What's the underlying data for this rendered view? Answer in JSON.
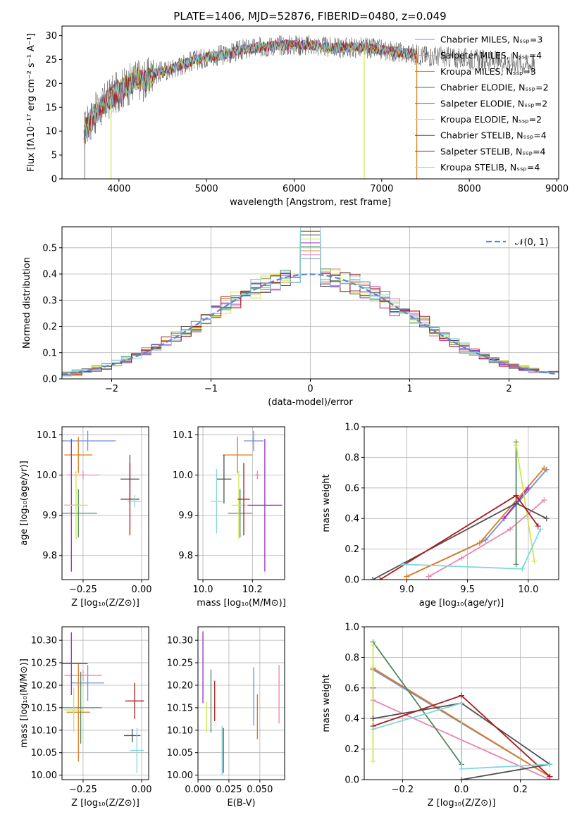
{
  "figure": {
    "title": "PLATE=1406, MJD=52876, FIBERID=0480, z=0.049"
  },
  "colors": [
    "#6f8fd8",
    "#ee82b4",
    "#e07a1f",
    "#4f8a5e",
    "#9a2cc4",
    "#cde849",
    "#4f4f4f",
    "#aa1a1a",
    "#7fd8df"
  ],
  "chart_data": [
    {
      "id": "spectrum",
      "type": "line",
      "title": "PLATE=1406, MJD=52876, FIBERID=0480, z=0.049",
      "xlabel": "wavelength [Angstrom, rest frame]",
      "ylabel": "Flux [fλ10⁻¹⁷ erg cm⁻² s⁻¹ A⁻¹]",
      "xlim": [
        3350,
        9020
      ],
      "ylim": [
        0,
        32
      ],
      "xticks": [
        4000,
        5000,
        6000,
        7000,
        8000,
        9000
      ],
      "yticks": [
        0,
        5,
        10,
        15,
        20,
        25,
        30
      ],
      "grid": false,
      "legend_position": "upper-right",
      "legend": [
        "Chabrier MILES, Nₛₛₚ=3",
        "Salpeter MILES, Nₛₛₚ=4",
        "Kroupa MILES, Nₛₛₚ=3",
        "Chabrier ELODIE, Nₛₛₚ=2",
        "Salpeter ELODIE, Nₛₛₚ=2",
        "Kroupa ELODIE, Nₛₛₚ=2",
        "Chabrier STELIB, Nₛₛₚ=4",
        "Salpeter STELIB, Nₛₛₚ=4",
        "Kroupa STELIB, Nₛₛₚ=4"
      ],
      "continuum_envelope": {
        "x": [
          3600,
          3700,
          3800,
          3900,
          4000,
          4100,
          4200,
          4300,
          4400,
          4600,
          4800,
          5000,
          5200,
          5400,
          5600,
          5800,
          6000,
          6200,
          6400,
          6600,
          6800,
          7000,
          7200,
          7400
        ],
        "y": [
          10,
          13,
          15,
          17,
          18.5,
          19.5,
          21,
          20.5,
          22,
          23,
          24.5,
          25.5,
          26,
          27,
          27.5,
          28,
          28,
          28,
          27.5,
          27.5,
          27.5,
          27,
          26.5,
          26
        ]
      },
      "model_range": [
        3600,
        7400
      ],
      "data_range": [
        3600,
        8750
      ]
    },
    {
      "id": "residuals",
      "type": "histogram",
      "xlabel": "(data-model)/error",
      "ylabel": "Normed distribution",
      "xlim": [
        -2.5,
        2.5
      ],
      "ylim": [
        0,
        0.58
      ],
      "xticks": [
        -2,
        -1,
        0,
        1,
        2
      ],
      "yticks": [
        0.0,
        0.1,
        0.2,
        0.3,
        0.4,
        0.5
      ],
      "grid": true,
      "bin_width": 0.1,
      "reference_curve": "N(0,1)",
      "legend": [
        "𝒩(0, 1)"
      ]
    },
    {
      "id": "z-age",
      "type": "scatter",
      "xlabel": "Z [log₁₀(Z/Z⊙)]",
      "ylabel": "age  [log₁₀(age/yr)]",
      "xlim": [
        -0.34,
        0.03
      ],
      "ylim": [
        9.74,
        10.12
      ],
      "xticks": [
        -0.25,
        0.0
      ],
      "yticks": [
        9.8,
        9.9,
        10.0,
        10.1
      ],
      "grid": true,
      "points": [
        {
          "x": -0.23,
          "y": 10.085,
          "xerr": 0.12,
          "yerr": 0.025
        },
        {
          "x": -0.25,
          "y": 10.0,
          "xerr": 0.07,
          "yerr": 0.01
        },
        {
          "x": -0.27,
          "y": 10.05,
          "xerr": 0.06,
          "yerr": 0.045
        },
        {
          "x": -0.27,
          "y": 9.905,
          "xerr": 0.08,
          "yerr": 0.06
        },
        {
          "x": -0.3,
          "y": 9.925,
          "xerr": 0.03,
          "yerr": 0.165
        },
        {
          "x": -0.28,
          "y": 9.925,
          "xerr": 0.05,
          "yerr": 0.085
        },
        {
          "x": -0.05,
          "y": 9.99,
          "xerr": 0.04,
          "yerr": 0.06
        },
        {
          "x": -0.05,
          "y": 9.94,
          "xerr": 0.04,
          "yerr": 0.09
        },
        {
          "x": -0.03,
          "y": 9.935,
          "xerr": 0.03,
          "yerr": 0.015
        }
      ]
    },
    {
      "id": "mass-age",
      "type": "scatter",
      "xlabel": "mass [log₁₀(M/M⊙)]",
      "ylabel": "",
      "xlim": [
        9.98,
        10.33
      ],
      "ylim": [
        9.74,
        10.12
      ],
      "xticks": [
        10.0,
        10.2
      ],
      "yticks": [
        9.8,
        9.9,
        10.0,
        10.1
      ],
      "grid": true,
      "points": [
        {
          "x": 10.205,
          "y": 10.085,
          "xerr": 0.04,
          "yerr": 0.025
        },
        {
          "x": 10.22,
          "y": 10.0,
          "xerr": 0.015,
          "yerr": 0.01
        },
        {
          "x": 10.14,
          "y": 10.05,
          "xerr": 0.06,
          "yerr": 0.045
        },
        {
          "x": 10.15,
          "y": 9.905,
          "xerr": 0.05,
          "yerr": 0.06
        },
        {
          "x": 10.25,
          "y": 9.925,
          "xerr": 0.07,
          "yerr": 0.165
        },
        {
          "x": 10.145,
          "y": 9.925,
          "xerr": 0.03,
          "yerr": 0.085
        },
        {
          "x": 10.085,
          "y": 9.99,
          "xerr": 0.03,
          "yerr": 0.06
        },
        {
          "x": 10.165,
          "y": 9.94,
          "xerr": 0.025,
          "yerr": 0.09
        },
        {
          "x": 10.055,
          "y": 9.935,
          "xerr": 0.025,
          "yerr": 0.08
        }
      ]
    },
    {
      "id": "age-weight",
      "type": "line",
      "xlabel": "age  [log₁₀(age/yr)]",
      "ylabel": "mass weight",
      "xlim": [
        8.65,
        10.25
      ],
      "ylim": [
        0,
        1
      ],
      "xticks": [
        9.0,
        9.5,
        10.0
      ],
      "yticks": [
        0.0,
        0.2,
        0.4,
        0.6,
        0.8,
        1.0
      ],
      "grid": true,
      "series": [
        {
          "x": [
            9.0,
            9.65,
            10.15
          ],
          "y": [
            0.02,
            0.26,
            0.72
          ]
        },
        {
          "x": [
            9.18,
            9.45,
            9.85,
            10.13
          ],
          "y": [
            0.02,
            0.14,
            0.33,
            0.52
          ]
        },
        {
          "x": [
            9.0,
            9.6,
            10.13
          ],
          "y": [
            0.02,
            0.24,
            0.73
          ]
        },
        {
          "x": [
            9.9,
            9.9
          ],
          "y": [
            0.1,
            0.9
          ]
        },
        {
          "x": [
            9.8,
            10.0
          ],
          "y": [
            0.4,
            0.6
          ]
        },
        {
          "x": [
            9.9,
            10.05
          ],
          "y": [
            0.88,
            0.12
          ]
        },
        {
          "x": [
            8.72,
            9.9,
            10.15
          ],
          "y": [
            0.0,
            0.5,
            0.4
          ]
        },
        {
          "x": [
            8.78,
            9.9,
            10.08
          ],
          "y": [
            0.0,
            0.55,
            0.35
          ]
        },
        {
          "x": [
            8.97,
            9.95,
            10.1
          ],
          "y": [
            0.1,
            0.07,
            0.33
          ]
        }
      ]
    },
    {
      "id": "z-mass",
      "type": "scatter",
      "xlabel": "Z [log₁₀(Z/Z⊙)]",
      "ylabel": "mass [log₁₀(M/M⊙)]",
      "xlim": [
        -0.34,
        0.03
      ],
      "ylim": [
        9.99,
        10.33
      ],
      "xticks": [
        -0.25,
        0.0
      ],
      "yticks": [
        10.0,
        10.05,
        10.1,
        10.15,
        10.2,
        10.25,
        10.3
      ],
      "grid": true,
      "points": [
        {
          "x": -0.23,
          "y": 10.205,
          "xerr": 0.07,
          "yerr": 0.04
        },
        {
          "x": -0.25,
          "y": 10.222,
          "xerr": 0.08,
          "yerr": 0.012
        },
        {
          "x": -0.27,
          "y": 10.14,
          "xerr": 0.05,
          "yerr": 0.11
        },
        {
          "x": -0.26,
          "y": 10.15,
          "xerr": 0.09,
          "yerr": 0.08
        },
        {
          "x": -0.3,
          "y": 10.248,
          "xerr": 0.07,
          "yerr": 0.07
        },
        {
          "x": -0.29,
          "y": 10.145,
          "xerr": 0.04,
          "yerr": 0.05
        },
        {
          "x": -0.04,
          "y": 10.088,
          "xerr": 0.035,
          "yerr": 0.015
        },
        {
          "x": -0.03,
          "y": 10.165,
          "xerr": 0.04,
          "yerr": 0.04
        },
        {
          "x": -0.02,
          "y": 10.055,
          "xerr": 0.03,
          "yerr": 0.05
        }
      ]
    },
    {
      "id": "ebv-mass",
      "type": "scatter",
      "xlabel": "E(B-V)",
      "ylabel": "",
      "xlim": [
        0.0,
        0.07
      ],
      "ylim": [
        9.99,
        10.33
      ],
      "xticks": [
        0.0,
        0.025,
        0.05
      ],
      "xticklabels": [
        "0.000",
        "0.025",
        "0.050"
      ],
      "yticks": [
        10.0,
        10.05,
        10.1,
        10.15,
        10.2,
        10.25,
        10.3
      ],
      "grid": true,
      "points": [
        {
          "x": 0.045,
          "y": 10.175,
          "xerr": 0,
          "yerr": 0.065
        },
        {
          "x": 0.0655,
          "y": 10.18,
          "xerr": 0,
          "yerr": 0.065
        },
        {
          "x": 0.048,
          "y": 10.13,
          "xerr": 0,
          "yerr": 0.05
        },
        {
          "x": 0.0105,
          "y": 10.165,
          "xerr": 0,
          "yerr": 0.07
        },
        {
          "x": 0.004,
          "y": 10.24,
          "xerr": 0,
          "yerr": 0.08
        },
        {
          "x": 0.007,
          "y": 10.13,
          "xerr": 0,
          "yerr": 0.035
        },
        {
          "x": 0.0205,
          "y": 10.055,
          "xerr": 0,
          "yerr": 0.05
        },
        {
          "x": 0.0135,
          "y": 10.165,
          "xerr": 0,
          "yerr": 0.045
        },
        {
          "x": 0.0195,
          "y": 10.055,
          "xerr": 0,
          "yerr": 0.055
        }
      ]
    },
    {
      "id": "z-weight",
      "type": "line",
      "xlabel": "Z [log₁₀(Z/Z⊙)]",
      "ylabel": "mass weight",
      "xlim": [
        -0.33,
        0.33
      ],
      "ylim": [
        0,
        1
      ],
      "xticks": [
        -0.2,
        0.0,
        0.2
      ],
      "yticks": [
        0.0,
        0.2,
        0.4,
        0.6,
        0.8,
        1.0
      ],
      "grid": true,
      "series": [
        {
          "x": [
            -0.3,
            0.3
          ],
          "y": [
            0.72,
            0.02
          ]
        },
        {
          "x": [
            -0.3,
            0.3
          ],
          "y": [
            0.52,
            0.0
          ]
        },
        {
          "x": [
            -0.3,
            0.3
          ],
          "y": [
            0.73,
            0.02
          ]
        },
        {
          "x": [
            -0.3,
            0.0
          ],
          "y": [
            0.9,
            0.1
          ]
        },
        {
          "x": [
            -0.3,
            -0.3
          ],
          "y": [
            0.6,
            0.4
          ]
        },
        {
          "x": [
            -0.3,
            -0.3
          ],
          "y": [
            0.88,
            0.12
          ]
        },
        {
          "x": [
            -0.3,
            0.0,
            0.3,
            0.0
          ],
          "y": [
            0.4,
            0.5,
            0.1,
            0.0
          ]
        },
        {
          "x": [
            -0.3,
            0.0,
            0.3
          ],
          "y": [
            0.35,
            0.55,
            0.02
          ]
        },
        {
          "x": [
            -0.3,
            0.0,
            0.0,
            0.3
          ],
          "y": [
            0.33,
            0.5,
            0.07,
            0.1
          ]
        }
      ]
    }
  ]
}
